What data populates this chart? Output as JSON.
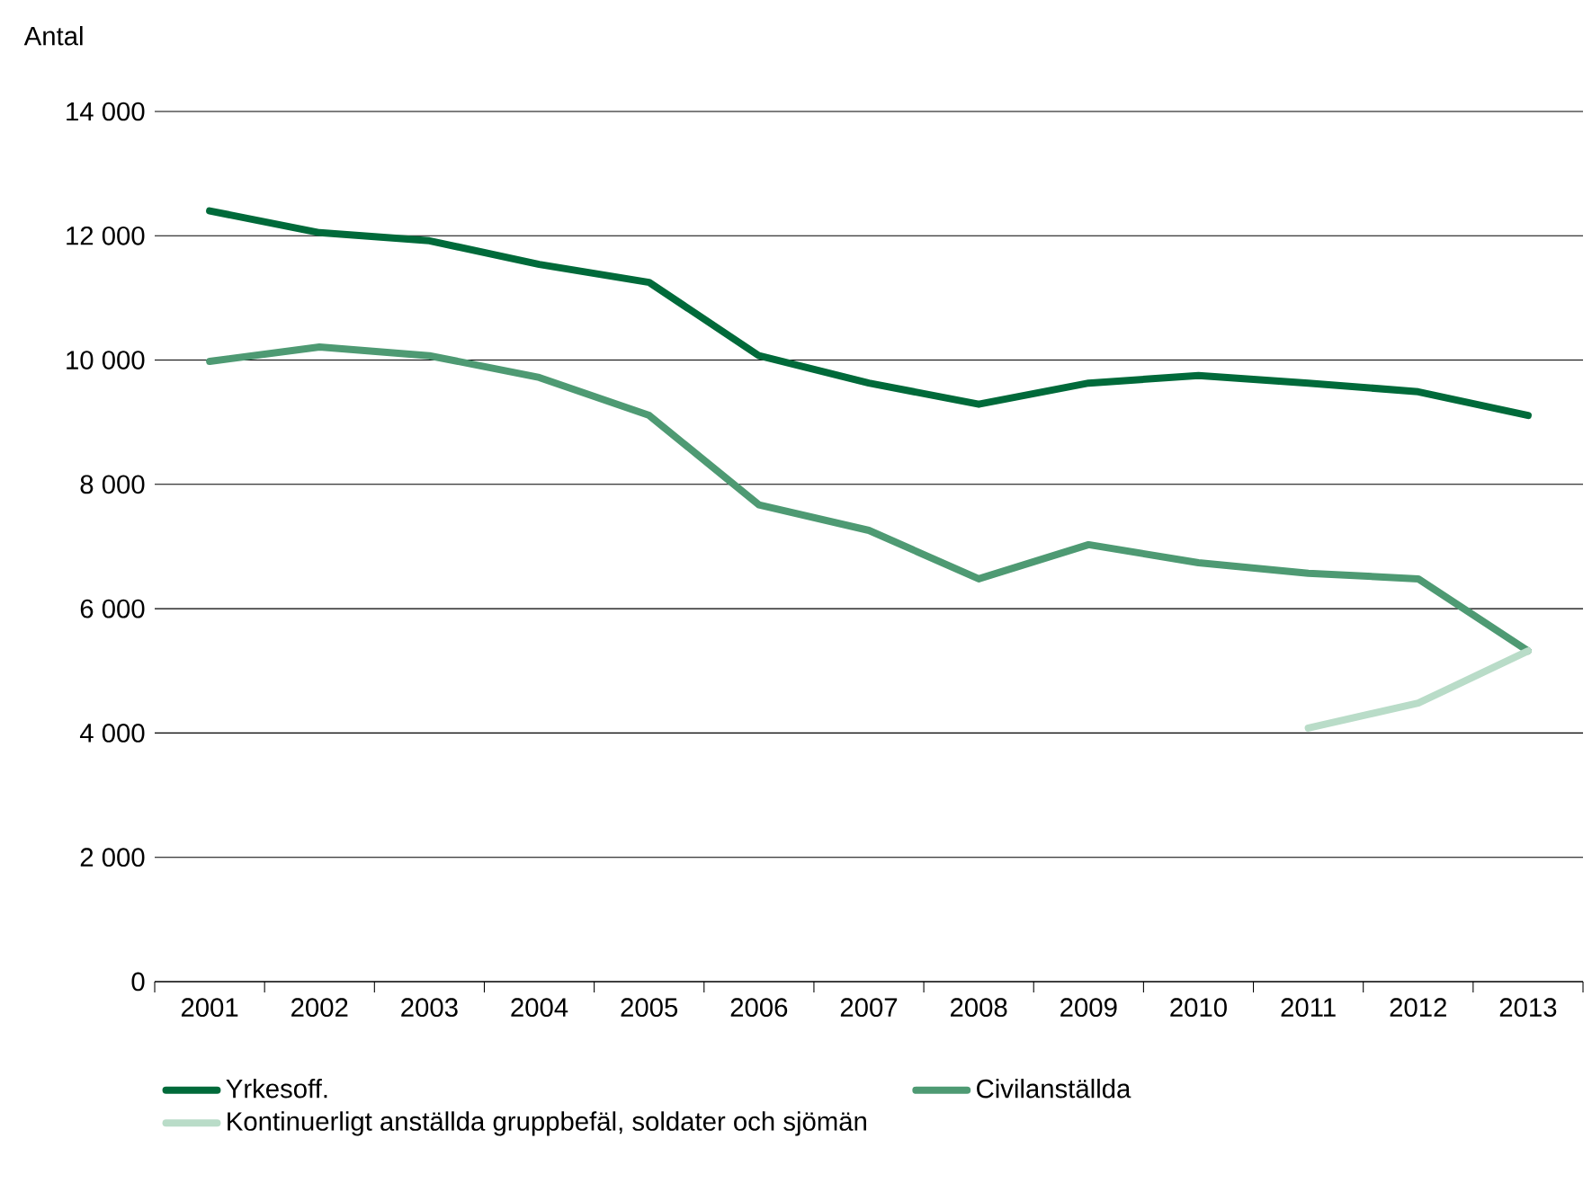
{
  "chart_data": {
    "type": "line",
    "ylabel": "Antal",
    "categories": [
      "2001",
      "2002",
      "2003",
      "2004",
      "2005",
      "2006",
      "2007",
      "2008",
      "2009",
      "2010",
      "2011",
      "2012",
      "2013"
    ],
    "series": [
      {
        "name": "Yrkesoff.",
        "color": "#006a3a",
        "values": [
          12400,
          12050,
          11920,
          11540,
          11250,
          10070,
          9630,
          9290,
          9630,
          9750,
          9630,
          9490,
          9110
        ]
      },
      {
        "name": "Civilanställda",
        "color": "#4e9a73",
        "values": [
          9980,
          10210,
          10070,
          9720,
          9110,
          7670,
          7260,
          6480,
          7030,
          6740,
          6570,
          6480,
          5320
        ]
      },
      {
        "name": "Kontinuerligt anställda gruppbefäl, soldater och sjömän",
        "color": "#b9dcc8",
        "values": [
          null,
          null,
          null,
          null,
          null,
          null,
          null,
          null,
          null,
          null,
          4080,
          4480,
          5320
        ]
      }
    ],
    "ylim": [
      0,
      14000
    ],
    "yticks": [
      {
        "value": 0,
        "label": "0"
      },
      {
        "value": 2000,
        "label": "2 000"
      },
      {
        "value": 4000,
        "label": "4 000"
      },
      {
        "value": 6000,
        "label": "6 000"
      },
      {
        "value": 8000,
        "label": "8 000"
      },
      {
        "value": 10000,
        "label": "10 000"
      },
      {
        "value": 12000,
        "label": "12 000"
      },
      {
        "value": 14000,
        "label": "14 000"
      }
    ],
    "grid": "y",
    "legend": "bottom",
    "line_style": "solid",
    "marker": "none"
  }
}
